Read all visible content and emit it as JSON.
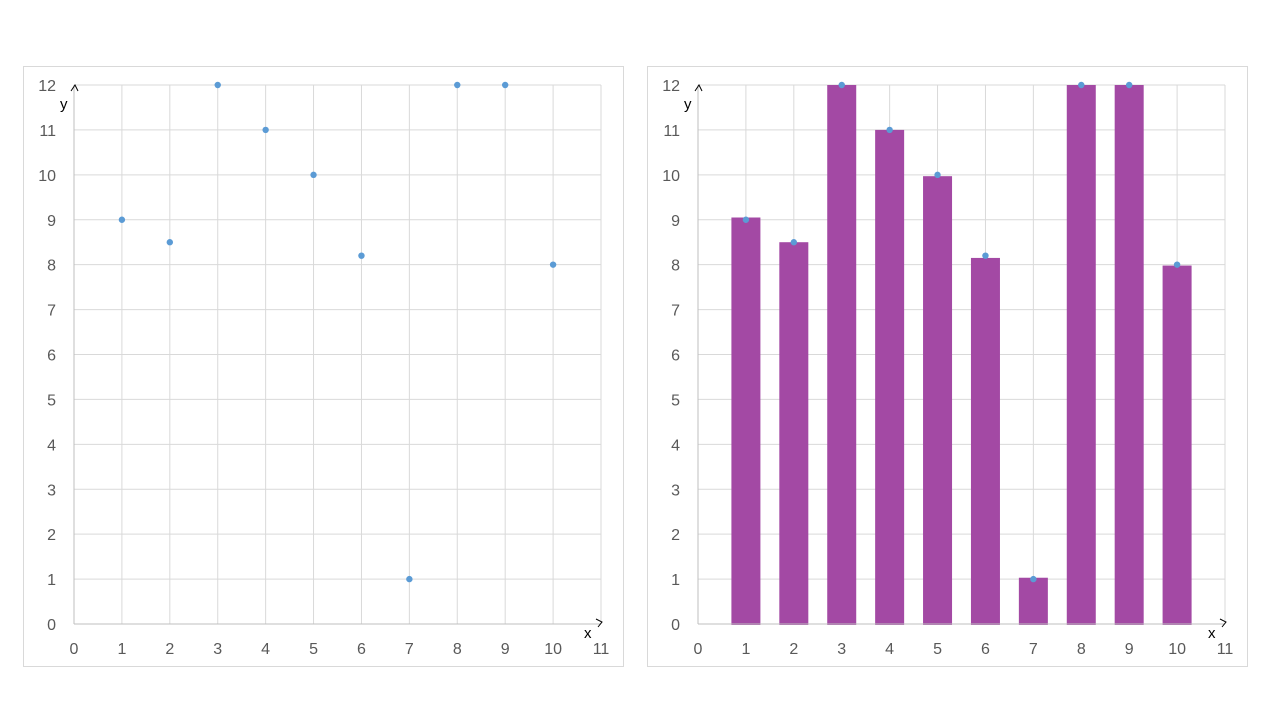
{
  "chart_data": [
    {
      "type": "scatter",
      "x": [
        1,
        2,
        3,
        4,
        5,
        6,
        7,
        8,
        9,
        10
      ],
      "y": [
        9,
        8.5,
        12,
        11,
        10,
        8.2,
        1,
        12,
        12,
        8
      ],
      "xlim": [
        0,
        11
      ],
      "ylim": [
        0,
        12
      ],
      "x_ticks": [
        "0",
        "1",
        "2",
        "3",
        "4",
        "5",
        "6",
        "7",
        "8",
        "9",
        "10",
        "11"
      ],
      "y_ticks": [
        "0",
        "1",
        "2",
        "3",
        "4",
        "5",
        "6",
        "7",
        "8",
        "9",
        "10",
        "11",
        "12"
      ],
      "xlabel": "x",
      "ylabel": "y",
      "grid": true,
      "marker_color": "#5b9bd5"
    },
    {
      "type": "bar",
      "x": [
        1,
        2,
        3,
        4,
        5,
        6,
        7,
        8,
        9,
        10
      ],
      "y": [
        9,
        8.5,
        12,
        11,
        10,
        8.2,
        1,
        12,
        12,
        8
      ],
      "bar_values": [
        9.05,
        8.5,
        12,
        11,
        9.97,
        8.15,
        1.03,
        12,
        12,
        7.98
      ],
      "xlim": [
        0,
        11
      ],
      "ylim": [
        0,
        12
      ],
      "x_ticks": [
        "0",
        "1",
        "2",
        "3",
        "4",
        "5",
        "6",
        "7",
        "8",
        "9",
        "10",
        "11"
      ],
      "y_ticks": [
        "0",
        "1",
        "2",
        "3",
        "4",
        "5",
        "6",
        "7",
        "8",
        "9",
        "10",
        "11",
        "12"
      ],
      "xlabel": "x",
      "ylabel": "y",
      "grid": true,
      "bar_color": "#a349a4",
      "marker_color": "#5b9bd5"
    }
  ]
}
